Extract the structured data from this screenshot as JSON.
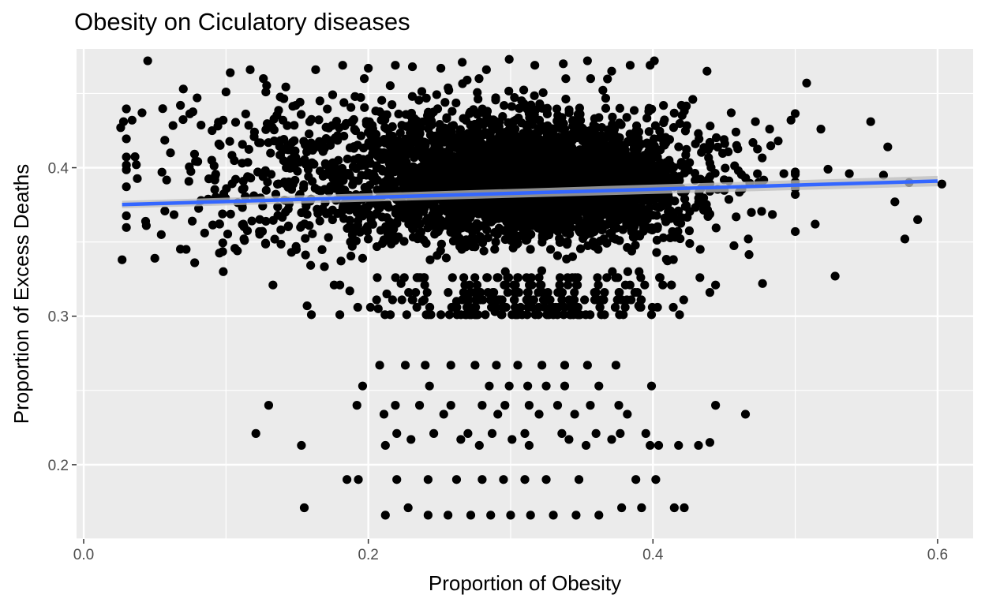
{
  "chart_data": {
    "type": "scatter",
    "title": "Obesity on Ciculatory diseases",
    "xlabel": "Proportion of Obesity",
    "ylabel": "Proportion of Excess Deaths",
    "xlim": [
      -0.005,
      0.625
    ],
    "ylim": [
      0.15,
      0.48
    ],
    "xticks": [
      0.0,
      0.2,
      0.4,
      0.6
    ],
    "xtick_labels": [
      "0.0",
      "0.2",
      "0.4",
      "0.6"
    ],
    "yticks": [
      0.2,
      0.3,
      0.4
    ],
    "ytick_labels": [
      "0.2",
      "0.3",
      "0.4"
    ],
    "grid": true,
    "legend": "none",
    "point_color": "#000000",
    "trend_color": "#3366ff",
    "trend_band_color": "#bdbdbd",
    "panel_color": "#ebebeb",
    "trend_line": {
      "x": [
        0.027,
        0.6
      ],
      "y": [
        0.3752,
        0.391
      ],
      "se_band": [
        0.0025,
        0.0035
      ]
    },
    "series": [
      {
        "points": [
          [
            0.045,
            0.472
          ],
          [
            0.026,
            0.427
          ],
          [
            0.028,
            0.431
          ],
          [
            0.034,
            0.432
          ],
          [
            0.041,
            0.437
          ],
          [
            0.037,
            0.402
          ],
          [
            0.027,
            0.338
          ],
          [
            0.044,
            0.361
          ],
          [
            0.05,
            0.339
          ],
          [
            0.055,
            0.397
          ],
          [
            0.061,
            0.41
          ],
          [
            0.068,
            0.442
          ],
          [
            0.07,
            0.453
          ],
          [
            0.072,
            0.345
          ],
          [
            0.078,
            0.336
          ],
          [
            0.085,
            0.356
          ],
          [
            0.09,
            0.405
          ],
          [
            0.095,
            0.416
          ],
          [
            0.098,
            0.432
          ],
          [
            0.1,
            0.451
          ],
          [
            0.103,
            0.464
          ],
          [
            0.108,
            0.344
          ],
          [
            0.113,
            0.351
          ],
          [
            0.117,
            0.466
          ],
          [
            0.12,
            0.424
          ],
          [
            0.126,
            0.394
          ],
          [
            0.128,
            0.451
          ],
          [
            0.133,
            0.321
          ],
          [
            0.14,
            0.432
          ],
          [
            0.146,
            0.343
          ],
          [
            0.152,
            0.382
          ],
          [
            0.157,
            0.307
          ],
          [
            0.16,
            0.301
          ],
          [
            0.163,
            0.466
          ],
          [
            0.166,
            0.445
          ],
          [
            0.172,
            0.353
          ],
          [
            0.176,
            0.321
          ],
          [
            0.182,
            0.469
          ],
          [
            0.187,
            0.317
          ],
          [
            0.191,
            0.425
          ],
          [
            0.196,
            0.339
          ],
          [
            0.2,
            0.467
          ],
          [
            0.207,
            0.305
          ],
          [
            0.213,
            0.315
          ],
          [
            0.219,
            0.469
          ],
          [
            0.223,
            0.322
          ],
          [
            0.227,
            0.301
          ],
          [
            0.231,
            0.468
          ],
          [
            0.238,
            0.31
          ],
          [
            0.244,
            0.301
          ],
          [
            0.251,
            0.467
          ],
          [
            0.257,
            0.301
          ],
          [
            0.262,
            0.31
          ],
          [
            0.266,
            0.471
          ],
          [
            0.271,
            0.306
          ],
          [
            0.277,
            0.301
          ],
          [
            0.283,
            0.466
          ],
          [
            0.289,
            0.303
          ],
          [
            0.294,
            0.311
          ],
          [
            0.299,
            0.473
          ],
          [
            0.305,
            0.301
          ],
          [
            0.312,
            0.306
          ],
          [
            0.317,
            0.469
          ],
          [
            0.323,
            0.311
          ],
          [
            0.33,
            0.301
          ],
          [
            0.337,
            0.47
          ],
          [
            0.342,
            0.306
          ],
          [
            0.348,
            0.301
          ],
          [
            0.354,
            0.472
          ],
          [
            0.36,
            0.316
          ],
          [
            0.366,
            0.301
          ],
          [
            0.371,
            0.465
          ],
          [
            0.378,
            0.311
          ],
          [
            0.384,
            0.469
          ],
          [
            0.39,
            0.307
          ],
          [
            0.398,
            0.469
          ],
          [
            0.401,
            0.472
          ],
          [
            0.405,
            0.326
          ],
          [
            0.413,
            0.321
          ],
          [
            0.42,
            0.442
          ],
          [
            0.428,
            0.446
          ],
          [
            0.433,
            0.326
          ],
          [
            0.438,
            0.465
          ],
          [
            0.444,
            0.321
          ],
          [
            0.45,
            0.419
          ],
          [
            0.455,
            0.437
          ],
          [
            0.46,
            0.398
          ],
          [
            0.467,
            0.352
          ],
          [
            0.472,
            0.431
          ],
          [
            0.477,
            0.322
          ],
          [
            0.482,
            0.426
          ],
          [
            0.488,
            0.418
          ],
          [
            0.492,
            0.396
          ],
          [
            0.497,
            0.432
          ],
          [
            0.5,
            0.357
          ],
          [
            0.508,
            0.457
          ],
          [
            0.514,
            0.362
          ],
          [
            0.518,
            0.426
          ],
          [
            0.523,
            0.399
          ],
          [
            0.528,
            0.327
          ],
          [
            0.538,
            0.396
          ],
          [
            0.553,
            0.431
          ],
          [
            0.562,
            0.395
          ],
          [
            0.565,
            0.414
          ],
          [
            0.57,
            0.377
          ],
          [
            0.577,
            0.352
          ],
          [
            0.58,
            0.39
          ],
          [
            0.586,
            0.365
          ],
          [
            0.603,
            0.389
          ],
          [
            0.208,
            0.267
          ],
          [
            0.226,
            0.267
          ],
          [
            0.24,
            0.267
          ],
          [
            0.258,
            0.267
          ],
          [
            0.275,
            0.267
          ],
          [
            0.29,
            0.267
          ],
          [
            0.305,
            0.267
          ],
          [
            0.322,
            0.267
          ],
          [
            0.338,
            0.267
          ],
          [
            0.354,
            0.267
          ],
          [
            0.374,
            0.267
          ],
          [
            0.196,
            0.253
          ],
          [
            0.243,
            0.253
          ],
          [
            0.285,
            0.253
          ],
          [
            0.299,
            0.253
          ],
          [
            0.312,
            0.253
          ],
          [
            0.325,
            0.253
          ],
          [
            0.338,
            0.253
          ],
          [
            0.362,
            0.253
          ],
          [
            0.399,
            0.253
          ],
          [
            0.13,
            0.24
          ],
          [
            0.192,
            0.24
          ],
          [
            0.219,
            0.24
          ],
          [
            0.236,
            0.24
          ],
          [
            0.258,
            0.24
          ],
          [
            0.28,
            0.24
          ],
          [
            0.296,
            0.24
          ],
          [
            0.313,
            0.24
          ],
          [
            0.333,
            0.24
          ],
          [
            0.356,
            0.24
          ],
          [
            0.376,
            0.24
          ],
          [
            0.444,
            0.24
          ],
          [
            0.211,
            0.234
          ],
          [
            0.253,
            0.234
          ],
          [
            0.291,
            0.234
          ],
          [
            0.32,
            0.234
          ],
          [
            0.345,
            0.234
          ],
          [
            0.382,
            0.234
          ],
          [
            0.465,
            0.234
          ],
          [
            0.121,
            0.221
          ],
          [
            0.22,
            0.221
          ],
          [
            0.246,
            0.221
          ],
          [
            0.27,
            0.221
          ],
          [
            0.287,
            0.221
          ],
          [
            0.31,
            0.221
          ],
          [
            0.336,
            0.221
          ],
          [
            0.36,
            0.221
          ],
          [
            0.377,
            0.221
          ],
          [
            0.395,
            0.221
          ],
          [
            0.23,
            0.217
          ],
          [
            0.265,
            0.217
          ],
          [
            0.301,
            0.217
          ],
          [
            0.341,
            0.217
          ],
          [
            0.371,
            0.217
          ],
          [
            0.153,
            0.213
          ],
          [
            0.212,
            0.213
          ],
          [
            0.278,
            0.213
          ],
          [
            0.313,
            0.213
          ],
          [
            0.353,
            0.213
          ],
          [
            0.398,
            0.213
          ],
          [
            0.404,
            0.213
          ],
          [
            0.418,
            0.213
          ],
          [
            0.432,
            0.213
          ],
          [
            0.44,
            0.215
          ],
          [
            0.185,
            0.19
          ],
          [
            0.193,
            0.19
          ],
          [
            0.22,
            0.19
          ],
          [
            0.242,
            0.19
          ],
          [
            0.262,
            0.19
          ],
          [
            0.28,
            0.19
          ],
          [
            0.295,
            0.19
          ],
          [
            0.31,
            0.19
          ],
          [
            0.325,
            0.19
          ],
          [
            0.348,
            0.19
          ],
          [
            0.388,
            0.19
          ],
          [
            0.402,
            0.19
          ],
          [
            0.155,
            0.171
          ],
          [
            0.212,
            0.166
          ],
          [
            0.228,
            0.171
          ],
          [
            0.242,
            0.166
          ],
          [
            0.256,
            0.166
          ],
          [
            0.272,
            0.166
          ],
          [
            0.286,
            0.166
          ],
          [
            0.3,
            0.166
          ],
          [
            0.314,
            0.166
          ],
          [
            0.33,
            0.166
          ],
          [
            0.346,
            0.166
          ],
          [
            0.362,
            0.166
          ],
          [
            0.378,
            0.171
          ],
          [
            0.392,
            0.171
          ],
          [
            0.415,
            0.171
          ],
          [
            0.422,
            0.171
          ]
        ],
        "dense_clusters": [
          {
            "x": [
              0.03,
              0.5
            ],
            "y": [
              0.33,
              0.46
            ],
            "count": 1500
          },
          {
            "x": [
              0.2,
              0.44
            ],
            "y": [
              0.345,
              0.44
            ],
            "count": 1800
          },
          {
            "x": [
              0.24,
              0.42
            ],
            "y": [
              0.36,
              0.42
            ],
            "count": 1400
          },
          {
            "x": [
              0.18,
              0.44
            ],
            "y": [
              0.306,
              0.33
            ],
            "count": 220
          }
        ]
      }
    ]
  }
}
